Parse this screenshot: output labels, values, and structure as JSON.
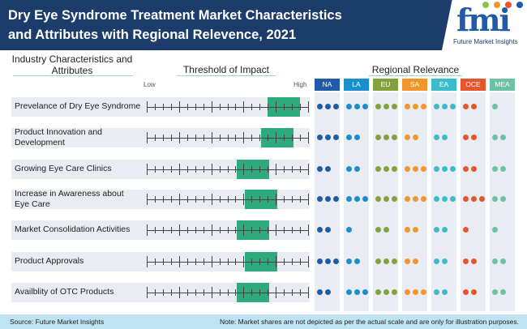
{
  "title": "Dry Eye Syndrome Treatment Market Characteristics and Attributes with Regional Relevence, 2021",
  "logo": {
    "mark": "fmi",
    "text": "Future Market Insights"
  },
  "headers": {
    "attributes": "Industry Characteristics and Attributes",
    "threshold": "Threshold of Impact",
    "regional": "Regional Relevance",
    "low": "Low",
    "high": "High"
  },
  "regions": [
    {
      "code": "NA",
      "color": "#1f5ba8"
    },
    {
      "code": "LA",
      "color": "#1a8fd0"
    },
    {
      "code": "EU",
      "color": "#83a33a"
    },
    {
      "code": "SA",
      "color": "#f3962a"
    },
    {
      "code": "EA",
      "color": "#3bbccb"
    },
    {
      "code": "OCE",
      "color": "#e8552c"
    },
    {
      "code": "MEA",
      "color": "#6cc3a4"
    }
  ],
  "impact_color": "#2eaa7f",
  "rows": [
    {
      "label": "Prevelance of Dry Eye Syndrome",
      "impact_range_pct": [
        75,
        95
      ],
      "dots": [
        3,
        3,
        3,
        3,
        3,
        2,
        1
      ]
    },
    {
      "label": "Product Innovation and Development",
      "impact_range_pct": [
        71,
        91
      ],
      "dots": [
        3,
        2,
        3,
        2,
        2,
        2,
        2
      ]
    },
    {
      "label": "Growing Eye Care Clinics",
      "impact_range_pct": [
        56,
        76
      ],
      "dots": [
        2,
        2,
        3,
        3,
        3,
        2,
        2
      ]
    },
    {
      "label": "Increase in Awareness about Eye Care",
      "impact_range_pct": [
        61,
        81
      ],
      "dots": [
        3,
        3,
        3,
        3,
        3,
        3,
        2
      ]
    },
    {
      "label": "Market Consolidation Activities",
      "impact_range_pct": [
        56,
        76
      ],
      "dots": [
        2,
        1,
        2,
        2,
        2,
        1,
        1
      ]
    },
    {
      "label": "Product Approvals",
      "impact_range_pct": [
        61,
        81
      ],
      "dots": [
        3,
        2,
        3,
        2,
        2,
        2,
        2
      ]
    },
    {
      "label": "Availblity of OTC Products",
      "impact_range_pct": [
        56,
        76
      ],
      "dots": [
        2,
        3,
        3,
        3,
        2,
        2,
        2
      ]
    }
  ],
  "footer": {
    "source": "Source: Future Market Insights",
    "note": "Note: Market shares are not depicted as per the actual scale and are only for illustration purposes."
  }
}
